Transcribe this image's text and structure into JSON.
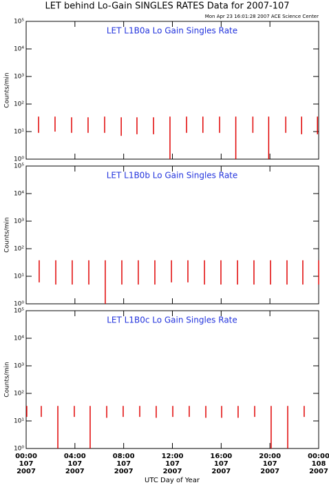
{
  "title": "LET behind Lo-Gain SINGLES RATES Data for 2007-107",
  "timestamp": "Mon Apr 23 16:01:28 2007 ACE Science Center",
  "x_axis": {
    "label": "UTC Day of Year",
    "xlim": [
      0,
      24
    ],
    "xticks": [
      {
        "value": 0,
        "label": "00:00"
      },
      {
        "value": 4,
        "label": "04:00"
      },
      {
        "value": 8,
        "label": "08:00"
      },
      {
        "value": 12,
        "label": "12:00"
      },
      {
        "value": 16,
        "label": "16:00"
      },
      {
        "value": 20,
        "label": "20:00"
      },
      {
        "value": 24,
        "label": "00:00"
      }
    ],
    "xtick_days": [
      "107",
      "107",
      "107",
      "107",
      "107",
      "107",
      "108"
    ],
    "xtick_years": [
      "2007",
      "2007",
      "2007",
      "2007",
      "2007",
      "2007",
      "2007"
    ]
  },
  "chart_data": [
    {
      "type": "spike",
      "title": "LET L1B0a Lo Gain Singles Rate",
      "y_label": "Counts/min",
      "log_y": true,
      "color": "#e00000",
      "ylim": [
        1,
        100000
      ],
      "yticks": [
        {
          "value": 1,
          "label": "10⁰"
        },
        {
          "value": 10,
          "label": "10¹"
        },
        {
          "value": 100,
          "label": "10²"
        },
        {
          "value": 1000,
          "label": "10³"
        },
        {
          "value": 10000,
          "label": "10⁴"
        },
        {
          "value": 100000,
          "label": "10⁵"
        }
      ],
      "x": [
        1.02,
        2.37,
        3.73,
        5.08,
        6.44,
        7.8,
        9.09,
        10.45,
        11.8,
        13.16,
        14.5,
        15.87,
        17.2,
        18.6,
        19.9,
        21.3,
        22.6,
        23.9
      ],
      "high": [
        35,
        35,
        33,
        33,
        35,
        33,
        33,
        33,
        35,
        35,
        35,
        35,
        35,
        35,
        35,
        35,
        35,
        35
      ],
      "low": [
        9,
        10,
        9,
        9,
        9,
        7,
        8,
        8,
        1,
        9,
        9,
        9,
        1,
        9,
        1,
        9,
        8,
        8
      ]
    },
    {
      "type": "spike",
      "title": "LET L1B0b Lo Gain Singles Rate",
      "y_label": "Counts/min",
      "log_y": true,
      "color": "#e00000",
      "ylim": [
        1,
        100000
      ],
      "yticks": [
        {
          "value": 1,
          "label": "10⁰"
        },
        {
          "value": 10,
          "label": "10¹"
        },
        {
          "value": 100,
          "label": "10²"
        },
        {
          "value": 1000,
          "label": "10³"
        },
        {
          "value": 10000,
          "label": "10⁴"
        },
        {
          "value": 100000,
          "label": "10⁵"
        }
      ],
      "x": [
        1.07,
        2.43,
        3.78,
        5.14,
        6.49,
        7.85,
        9.2,
        10.56,
        11.92,
        13.27,
        14.63,
        15.98,
        17.34,
        18.69,
        20.05,
        21.4,
        22.7,
        24
      ],
      "high": [
        38,
        38,
        38,
        38,
        38,
        38,
        38,
        38,
        38,
        38,
        38,
        38,
        38,
        38,
        38,
        38,
        38,
        38
      ],
      "low": [
        6,
        5,
        5,
        5,
        1,
        5,
        5,
        5,
        6,
        6,
        5,
        5,
        5,
        5,
        5,
        5,
        5,
        5
      ]
    },
    {
      "type": "spike",
      "title": "LET L1B0c Lo Gain Singles Rate",
      "y_label": "Counts/min",
      "log_y": true,
      "color": "#e00000",
      "ylim": [
        1,
        100000
      ],
      "yticks": [
        {
          "value": 1,
          "label": "10⁰"
        },
        {
          "value": 10,
          "label": "10¹"
        },
        {
          "value": 100,
          "label": "10²"
        },
        {
          "value": 1000,
          "label": "10³"
        },
        {
          "value": 10000,
          "label": "10⁴"
        },
        {
          "value": 100000,
          "label": "10⁵"
        }
      ],
      "x": [
        0.05,
        1.24,
        2.6,
        3.95,
        5.25,
        6.61,
        7.96,
        9.32,
        10.67,
        12.03,
        13.38,
        14.74,
        16.04,
        17.39,
        18.75,
        20.1,
        21.46,
        22.81
      ],
      "high": [
        35,
        35,
        35,
        35,
        35,
        35,
        35,
        35,
        35,
        35,
        35,
        35,
        35,
        35,
        35,
        35,
        35,
        35
      ],
      "low": [
        14,
        14,
        1,
        14,
        1,
        13,
        14,
        14,
        13,
        14,
        14,
        13,
        13,
        13,
        14,
        1,
        1,
        14
      ]
    }
  ]
}
